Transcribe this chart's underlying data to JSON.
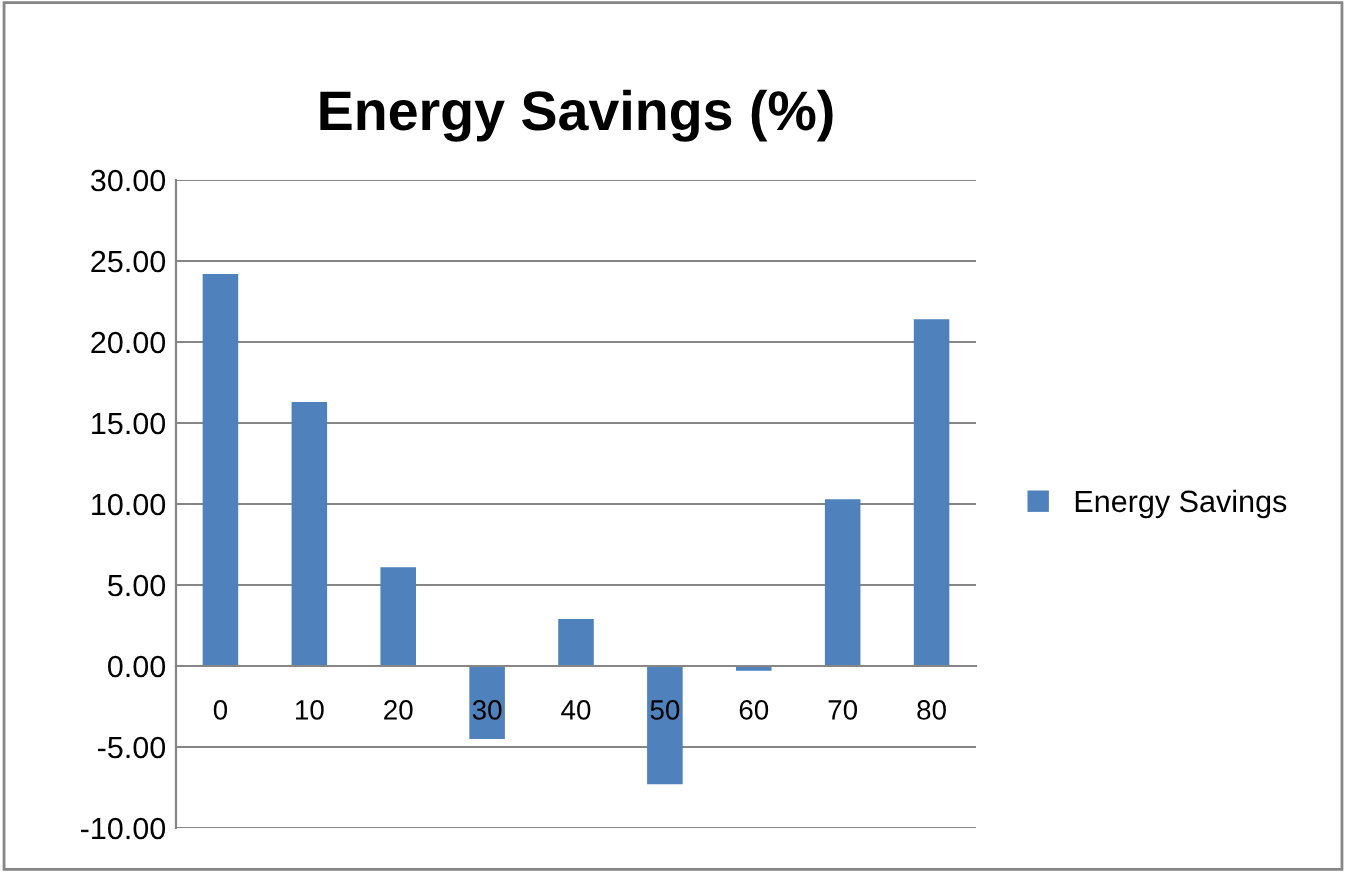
{
  "chart_data": {
    "type": "bar",
    "title": "Energy Savings (%)",
    "categories": [
      "0",
      "10",
      "20",
      "30",
      "40",
      "50",
      "60",
      "70",
      "80"
    ],
    "series": [
      {
        "name": "Energy Savings",
        "color": "#4f81bd",
        "values": [
          24.2,
          16.3,
          6.1,
          -4.5,
          2.9,
          -7.3,
          -0.3,
          10.3,
          21.4
        ]
      }
    ],
    "ylim": [
      -10,
      30
    ],
    "yticks": [
      {
        "value": -10,
        "label": "-10.00"
      },
      {
        "value": -5,
        "label": "-5.00"
      },
      {
        "value": 0,
        "label": "0.00"
      },
      {
        "value": 5,
        "label": "5.00"
      },
      {
        "value": 10,
        "label": "10.00"
      },
      {
        "value": 15,
        "label": "15.00"
      },
      {
        "value": 20,
        "label": "20.00"
      },
      {
        "value": 25,
        "label": "25.00"
      },
      {
        "value": 30,
        "label": "30.00"
      }
    ],
    "grid": "y",
    "legend": "right"
  }
}
